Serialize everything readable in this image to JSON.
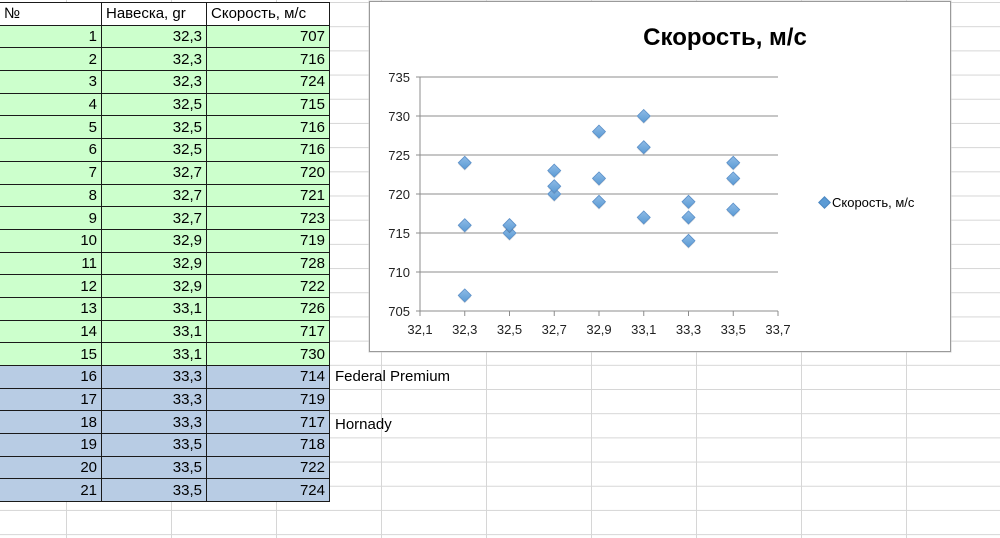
{
  "sheet": {
    "headers": [
      "№",
      "Навеска, gr",
      "Скорость, м/с"
    ],
    "rows": [
      {
        "n": "1",
        "charge": "32,3",
        "speed": "707",
        "group": "green"
      },
      {
        "n": "2",
        "charge": "32,3",
        "speed": "716",
        "group": "green"
      },
      {
        "n": "3",
        "charge": "32,3",
        "speed": "724",
        "group": "green"
      },
      {
        "n": "4",
        "charge": "32,5",
        "speed": "715",
        "group": "green"
      },
      {
        "n": "5",
        "charge": "32,5",
        "speed": "716",
        "group": "green"
      },
      {
        "n": "6",
        "charge": "32,5",
        "speed": "716",
        "group": "green"
      },
      {
        "n": "7",
        "charge": "32,7",
        "speed": "720",
        "group": "green"
      },
      {
        "n": "8",
        "charge": "32,7",
        "speed": "721",
        "group": "green"
      },
      {
        "n": "9",
        "charge": "32,7",
        "speed": "723",
        "group": "green"
      },
      {
        "n": "10",
        "charge": "32,9",
        "speed": "719",
        "group": "green"
      },
      {
        "n": "11",
        "charge": "32,9",
        "speed": "728",
        "group": "green"
      },
      {
        "n": "12",
        "charge": "32,9",
        "speed": "722",
        "group": "green"
      },
      {
        "n": "13",
        "charge": "33,1",
        "speed": "726",
        "group": "green"
      },
      {
        "n": "14",
        "charge": "33,1",
        "speed": "717",
        "group": "green"
      },
      {
        "n": "15",
        "charge": "33,1",
        "speed": "730",
        "group": "green"
      },
      {
        "n": "16",
        "charge": "33,3",
        "speed": "714",
        "group": "blue"
      },
      {
        "n": "17",
        "charge": "33,3",
        "speed": "719",
        "group": "blue"
      },
      {
        "n": "18",
        "charge": "33,3",
        "speed": "717",
        "group": "blue"
      },
      {
        "n": "19",
        "charge": "33,5",
        "speed": "718",
        "group": "blue"
      },
      {
        "n": "20",
        "charge": "33,5",
        "speed": "722",
        "group": "blue"
      },
      {
        "n": "21",
        "charge": "33,5",
        "speed": "724",
        "group": "blue"
      }
    ],
    "notes": [
      {
        "row": 15,
        "text": "Federal Premium"
      },
      {
        "row": 17,
        "text": "Hornady"
      }
    ],
    "colors": {
      "green": "#ccffcc",
      "blue": "#b8cce4"
    }
  },
  "chart_data": {
    "type": "scatter",
    "title": "Скорость, м/с",
    "xlabel": "",
    "ylabel": "",
    "xlim": [
      32.1,
      33.7
    ],
    "ylim": [
      705,
      735
    ],
    "x_ticks": [
      "32,1",
      "32,3",
      "32,5",
      "32,7",
      "32,9",
      "33,1",
      "33,3",
      "33,5",
      "33,7"
    ],
    "y_ticks": [
      "705",
      "710",
      "715",
      "720",
      "725",
      "730",
      "735"
    ],
    "grid": {
      "horizontal": true,
      "vertical": false
    },
    "legend_position": "right",
    "series": [
      {
        "name": "Скорость, м/с",
        "marker": "diamond",
        "color": "#5b9bd5",
        "x": [
          32.3,
          32.3,
          32.3,
          32.5,
          32.5,
          32.5,
          32.7,
          32.7,
          32.7,
          32.9,
          32.9,
          32.9,
          33.1,
          33.1,
          33.1,
          33.3,
          33.3,
          33.3,
          33.5,
          33.5,
          33.5
        ],
        "y": [
          707,
          716,
          724,
          715,
          716,
          716,
          720,
          721,
          723,
          719,
          728,
          722,
          726,
          717,
          730,
          714,
          719,
          717,
          718,
          722,
          724
        ]
      }
    ]
  }
}
